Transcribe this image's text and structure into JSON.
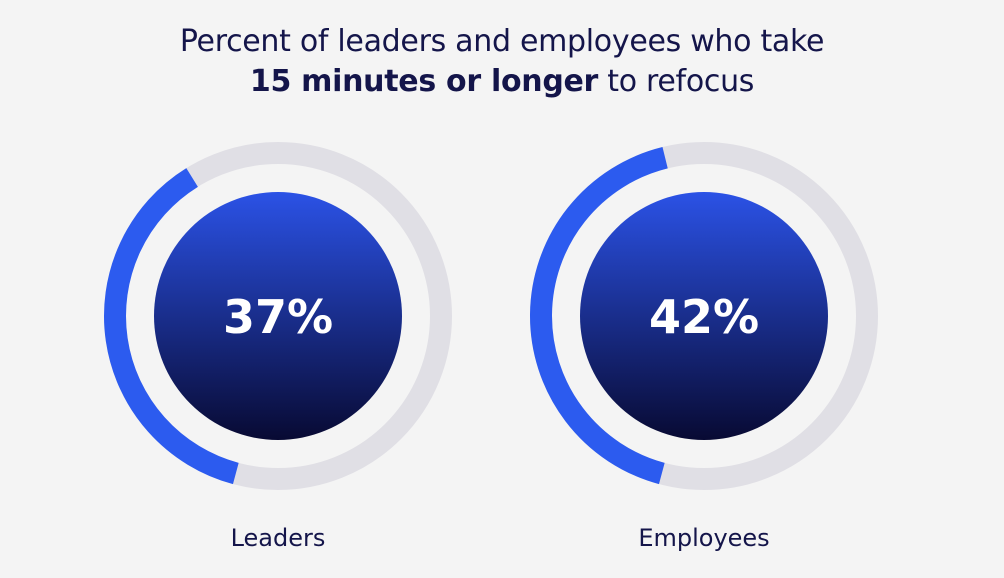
{
  "title": {
    "line1": "Percent of leaders and employees who take",
    "line2_bold": "15 minutes or longer",
    "line2_rest": " to refocus"
  },
  "colors": {
    "background": "#f4f4f4",
    "track": "#e0dfe5",
    "progress": "#2c5bef",
    "disc_top": "#2b52e6",
    "disc_bottom": "#080a33",
    "text": "#14154a"
  },
  "chart_data": {
    "type": "donut",
    "title": "Percent of leaders and employees who take 15 minutes or longer to refocus",
    "categories": [
      "Leaders",
      "Employees"
    ],
    "values": [
      37,
      42
    ],
    "value_labels": [
      "37%",
      "42%"
    ],
    "unit": "%",
    "max": 100
  }
}
